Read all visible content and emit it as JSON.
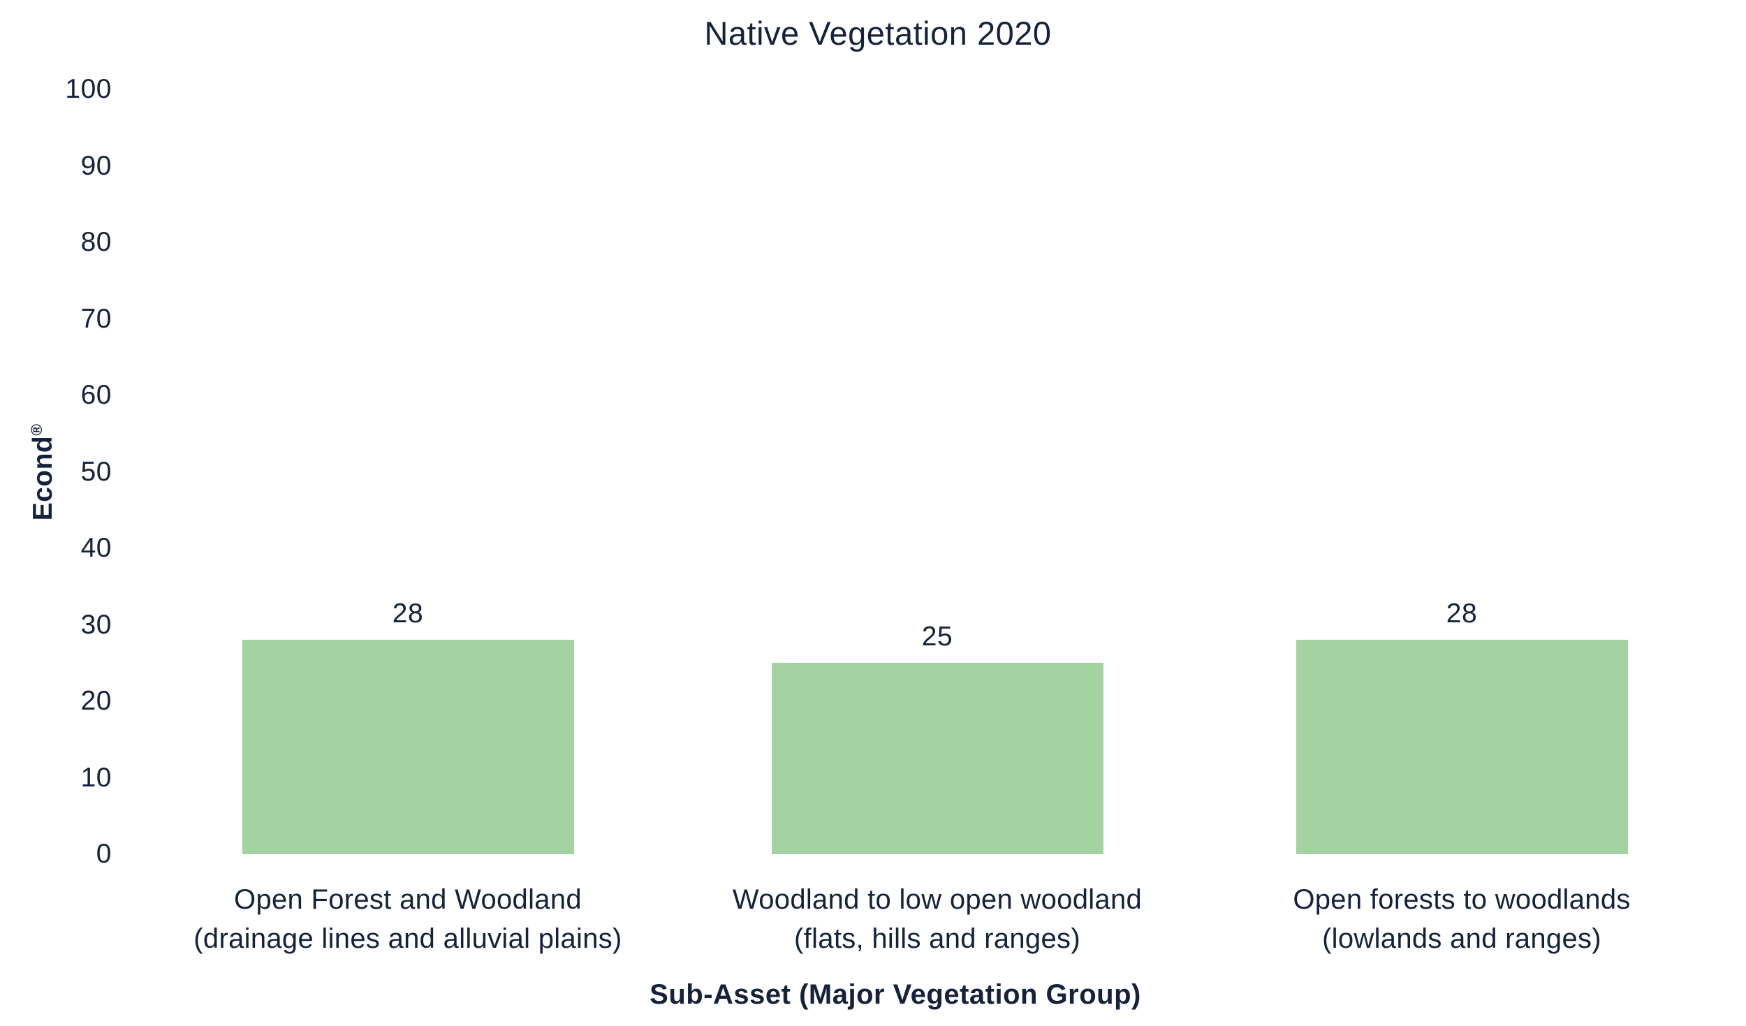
{
  "page": {
    "background": "#ffffff"
  },
  "colors": {
    "text": "#16213c",
    "bar_fill": "#a3d3a0"
  },
  "ylabel_parts": {
    "base": "Econd",
    "sup": "®"
  },
  "chart_data": {
    "type": "bar",
    "title": "Native Vegetation 2020",
    "xlabel": "Sub-Asset (Major Vegetation Group)",
    "ylabel": "Econd®",
    "ylim": [
      0,
      100
    ],
    "yticks": [
      100,
      90,
      80,
      70,
      60,
      50,
      40,
      30,
      20,
      10,
      0
    ],
    "grid": false,
    "legend": false,
    "bar_color": "#a3d3a0",
    "categories": [
      [
        "Open Forest and Woodland",
        "(drainage lines and alluvial plains)"
      ],
      [
        "Woodland to low open woodland",
        "(flats, hills and ranges)"
      ],
      [
        "Open forests to woodlands",
        "(lowlands and ranges)"
      ]
    ],
    "values": [
      28,
      25,
      28
    ],
    "value_labels": [
      "28",
      "25",
      "28"
    ]
  }
}
